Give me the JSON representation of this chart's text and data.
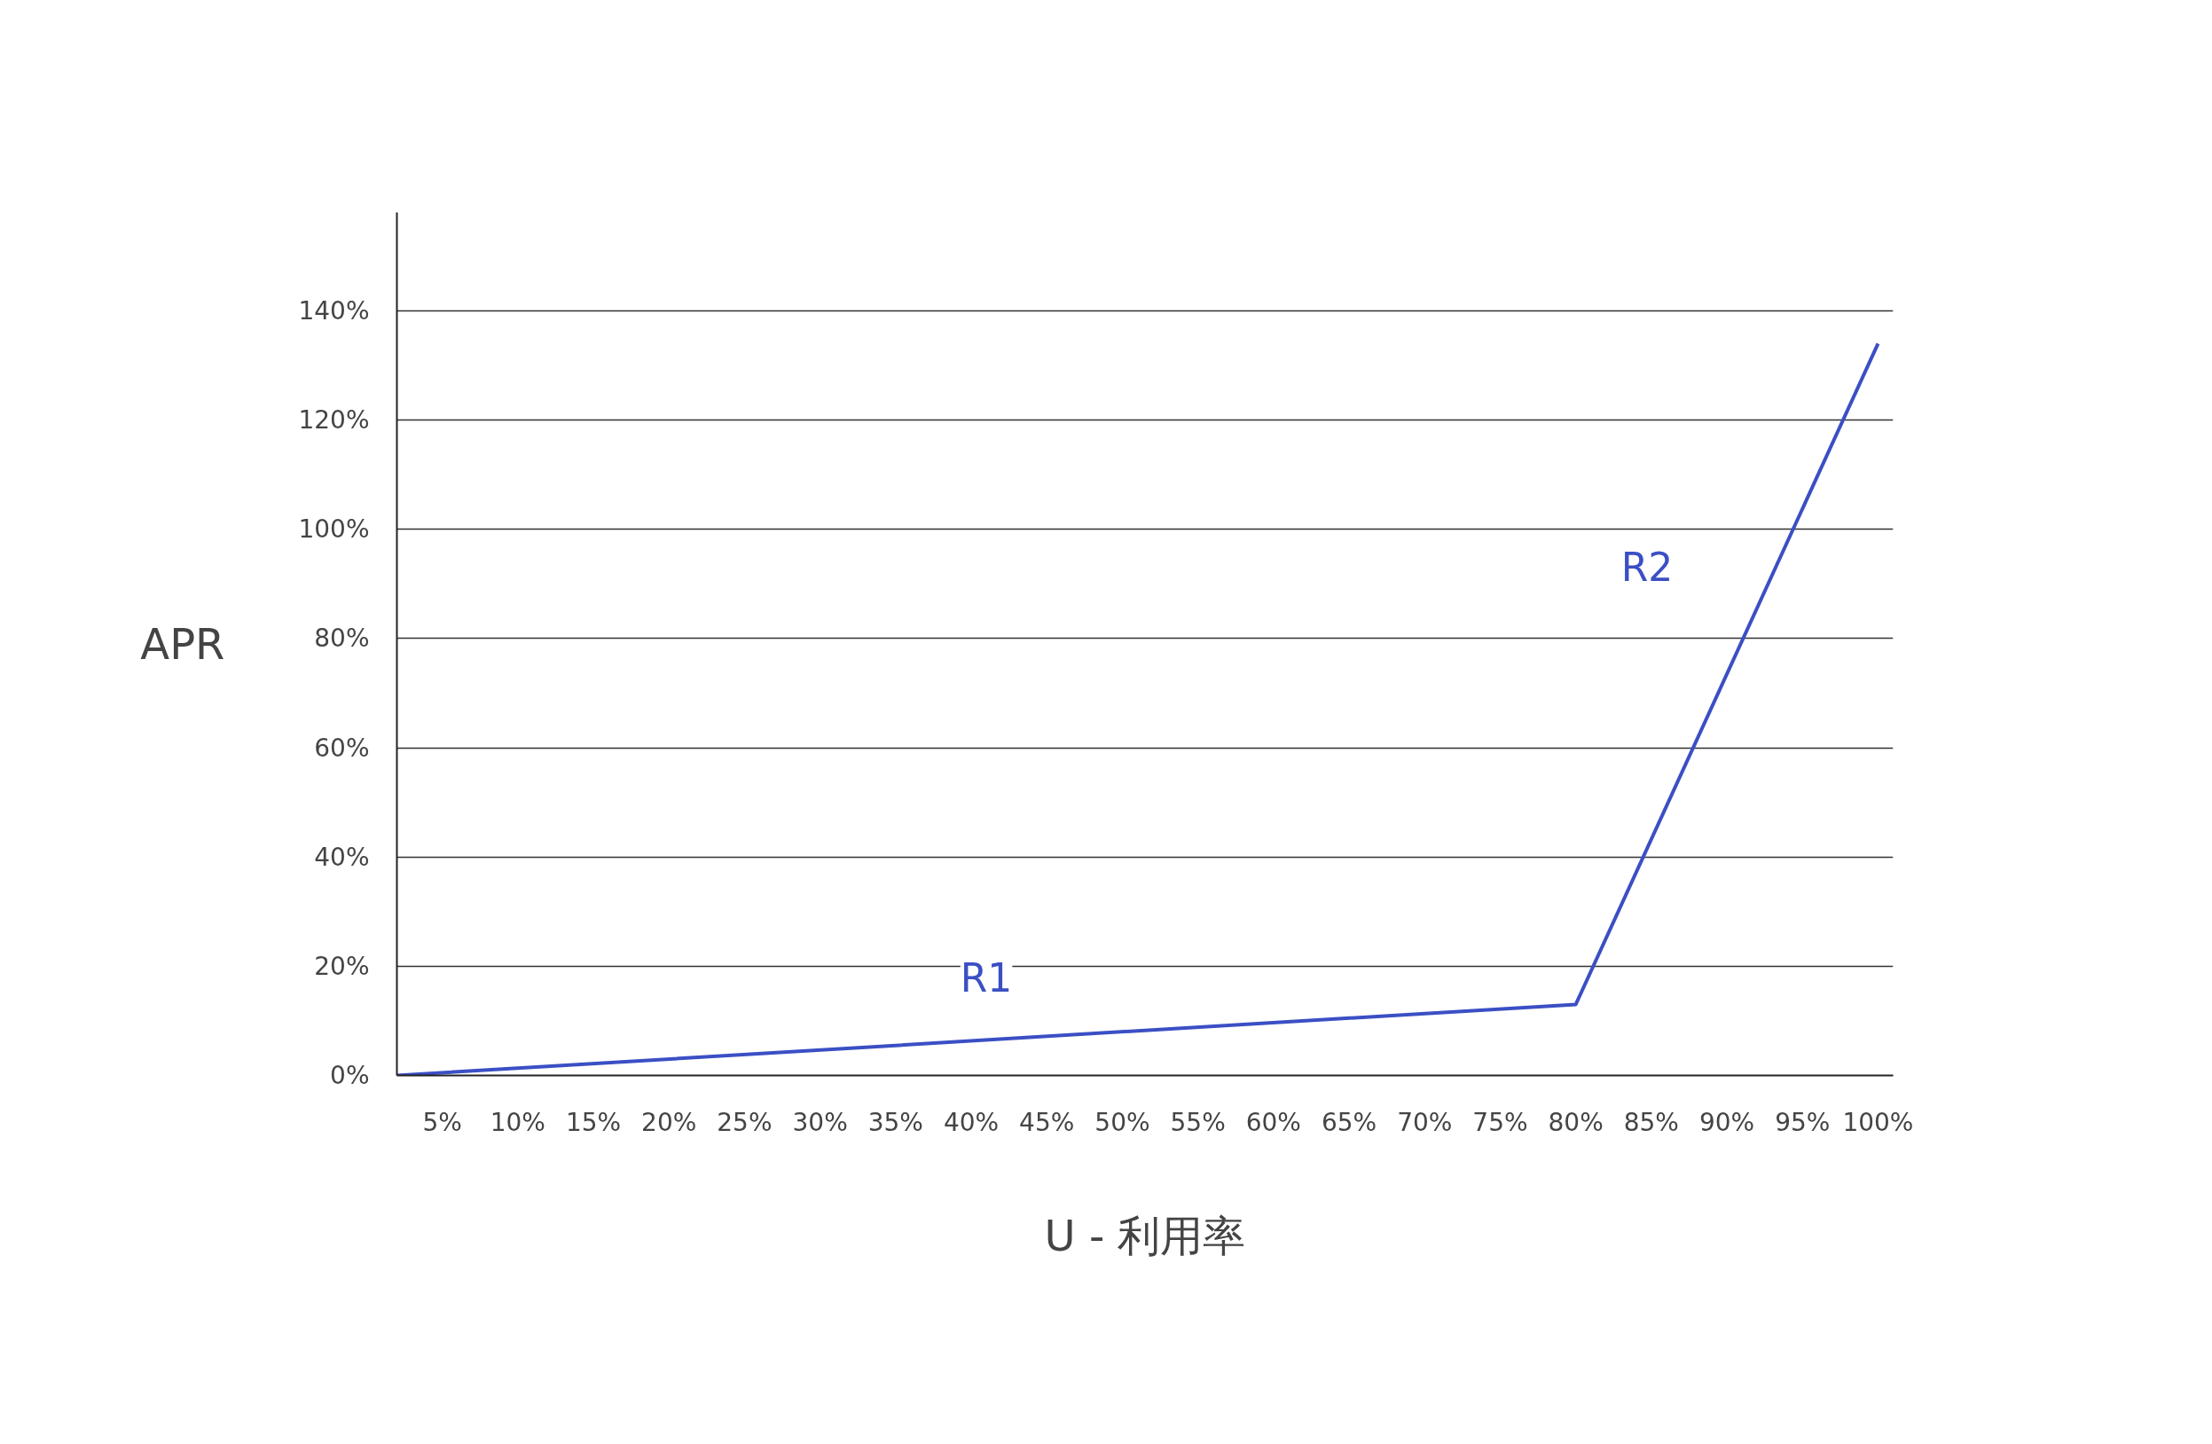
{
  "chart_data": {
    "type": "line",
    "xlabel": "U - 利用率",
    "ylabel": "APR",
    "x": [
      2,
      80,
      100
    ],
    "series": [
      {
        "color": "#3b4fc4",
        "values": [
          0,
          13,
          134
        ]
      }
    ],
    "xlim": [
      2,
      101
    ],
    "ylim": [
      0,
      158
    ],
    "xticks": [
      {
        "value": 5,
        "label": "5%"
      },
      {
        "value": 10,
        "label": "10%"
      },
      {
        "value": 15,
        "label": "15%"
      },
      {
        "value": 20,
        "label": "20%"
      },
      {
        "value": 25,
        "label": "25%"
      },
      {
        "value": 30,
        "label": "30%"
      },
      {
        "value": 35,
        "label": "35%"
      },
      {
        "value": 40,
        "label": "40%"
      },
      {
        "value": 45,
        "label": "45%"
      },
      {
        "value": 50,
        "label": "50%"
      },
      {
        "value": 55,
        "label": "55%"
      },
      {
        "value": 60,
        "label": "60%"
      },
      {
        "value": 65,
        "label": "65%"
      },
      {
        "value": 70,
        "label": "70%"
      },
      {
        "value": 75,
        "label": "75%"
      },
      {
        "value": 80,
        "label": "80%"
      },
      {
        "value": 85,
        "label": "85%"
      },
      {
        "value": 90,
        "label": "90%"
      },
      {
        "value": 95,
        "label": "95%"
      },
      {
        "value": 100,
        "label": "100%"
      }
    ],
    "yticks": [
      {
        "value": 0,
        "label": "0%"
      },
      {
        "value": 20,
        "label": "20%"
      },
      {
        "value": 40,
        "label": "40%"
      },
      {
        "value": 60,
        "label": "60%"
      },
      {
        "value": 80,
        "label": "80%"
      },
      {
        "value": 100,
        "label": "100%"
      },
      {
        "value": 120,
        "label": "120%"
      },
      {
        "value": 140,
        "label": "140%"
      }
    ],
    "grid": "y",
    "marker": "none",
    "line_style": "solid",
    "annotations": [
      "R1",
      "R2"
    ]
  }
}
